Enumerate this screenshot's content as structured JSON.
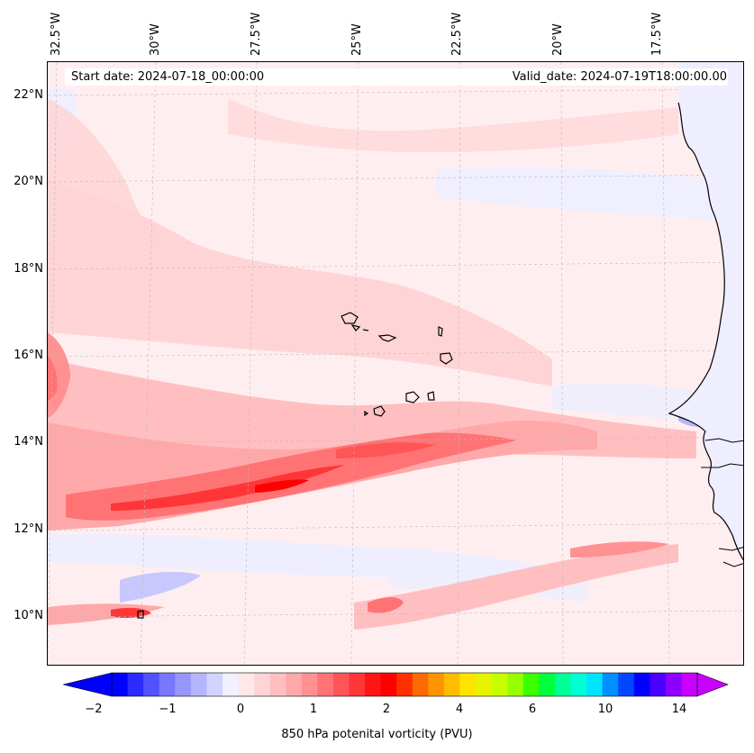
{
  "header": {
    "start_date": "Start date: 2024-07-18_00:00:00",
    "valid_date": "Valid_date: 2024-07-19T18:00:00.00"
  },
  "latitude_labels": [
    "22°N",
    "20°N",
    "18°N",
    "16°N",
    "14°N",
    "12°N",
    "10°N"
  ],
  "longitude_labels": [
    "32.5°W",
    "30°W",
    "27.5°W",
    "25°W",
    "22.5°W",
    "20°W",
    "17.5°W"
  ],
  "colorbar": {
    "label": "850 hPa potenital vorticity (PVU)",
    "tick_labels": [
      "−2",
      "−1",
      "0",
      "1",
      "2",
      "4",
      "6",
      "10",
      "14"
    ],
    "colors": [
      "#0000ff",
      "#2b2bff",
      "#5151ff",
      "#7777ff",
      "#9696ff",
      "#b5b5ff",
      "#d3d3ff",
      "#f0f0ff",
      "#ffe8ea",
      "#ffd4d6",
      "#ffbfc1",
      "#ffa8aa",
      "#ff9193",
      "#ff7375",
      "#ff5557",
      "#ff3638",
      "#ff1515",
      "#ff0000",
      "#ff3000",
      "#ff6a00",
      "#ff9400",
      "#ffbd00",
      "#ffe400",
      "#e8f300",
      "#c6ff00",
      "#96ff00",
      "#3cff00",
      "#00ff3c",
      "#00ff96",
      "#00ffd2",
      "#00e4ff",
      "#0090ff",
      "#0048ff",
      "#0000ff",
      "#4a00ff",
      "#8c00ff",
      "#c800ff"
    ]
  }
}
